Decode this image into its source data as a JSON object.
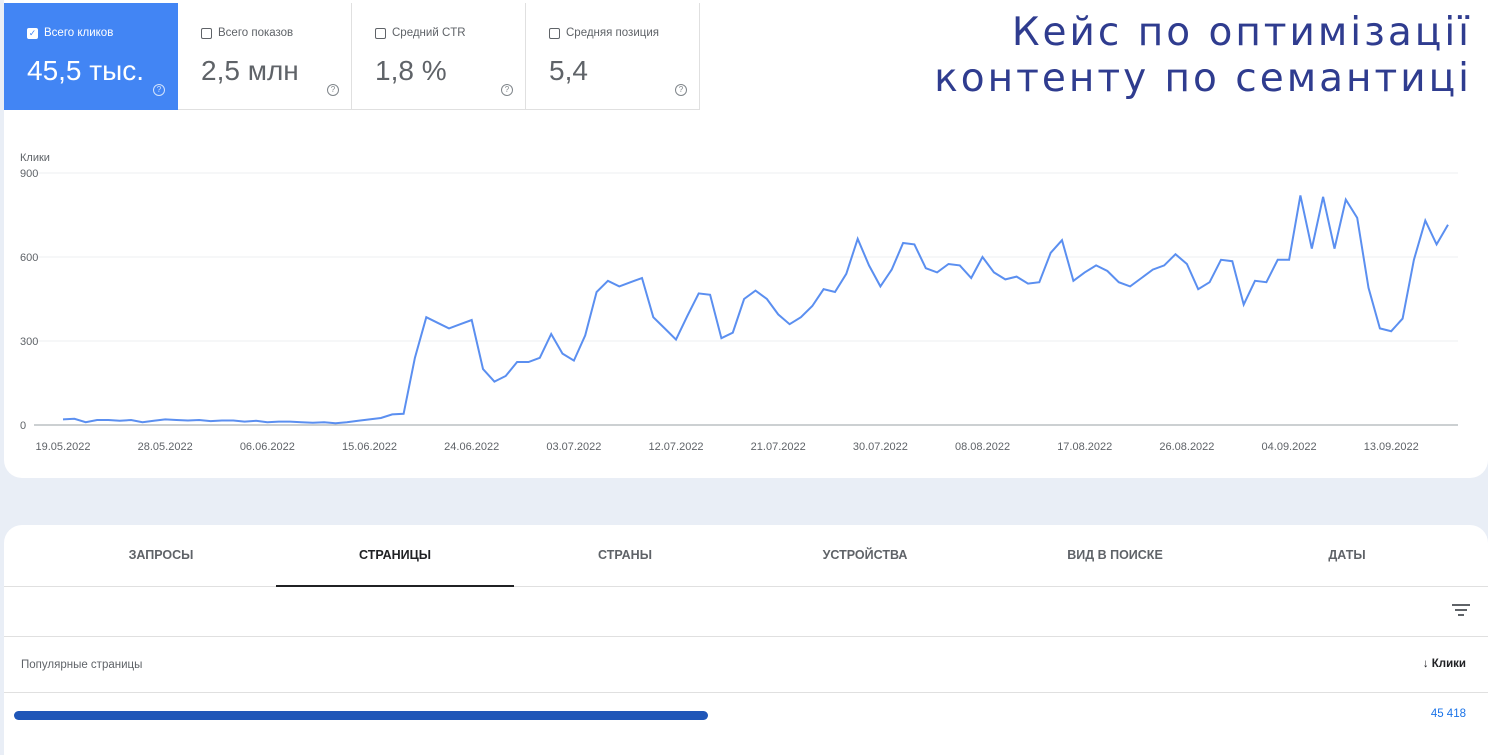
{
  "header": {
    "title_line1": "Кейс по оптимізації",
    "title_line2": "контенту по семантиці"
  },
  "metrics": [
    {
      "label": "Всего кликов",
      "value": "45,5 тыс.",
      "checked": true
    },
    {
      "label": "Всего показов",
      "value": "2,5 млн",
      "checked": false
    },
    {
      "label": "Средний CTR",
      "value": "1,8 %",
      "checked": false
    },
    {
      "label": "Средняя позиция",
      "value": "5,4",
      "checked": false
    }
  ],
  "help_glyph": "?",
  "check_glyph": "✓",
  "colors": {
    "accent": "#4285f4",
    "line": "#5b8ff0",
    "title": "#2f3c8f",
    "redaction": "#1f56b8"
  },
  "chart_data": {
    "type": "line",
    "ylabel": "Клики",
    "ylim": [
      0,
      900
    ],
    "yticks": [
      "0",
      "300",
      "600",
      "900"
    ],
    "xtick_labels": [
      "19.05.2022",
      "28.05.2022",
      "06.06.2022",
      "15.06.2022",
      "24.06.2022",
      "03.07.2022",
      "12.07.2022",
      "21.07.2022",
      "30.07.2022",
      "08.08.2022",
      "17.08.2022",
      "26.08.2022",
      "04.09.2022",
      "13.09.2022"
    ],
    "x_start": "19.05.2022",
    "x_end": "18.09.2022",
    "grid": true,
    "series": [
      {
        "values": [
          20,
          22,
          10,
          18,
          18,
          15,
          18,
          10,
          15,
          20,
          18,
          16,
          18,
          14,
          16,
          16,
          12,
          15,
          10,
          12,
          12,
          10,
          8,
          10,
          6,
          10,
          15,
          20,
          25,
          38,
          40,
          240,
          385,
          365,
          345,
          360,
          375,
          200,
          155,
          175,
          225,
          225,
          240,
          325,
          255,
          230,
          320,
          475,
          515,
          495,
          510,
          525,
          385,
          345,
          305,
          390,
          470,
          465,
          310,
          330,
          450,
          480,
          450,
          395,
          360,
          385,
          425,
          485,
          475,
          540,
          665,
          570,
          495,
          555,
          650,
          645,
          560,
          545,
          575,
          570,
          525,
          600,
          545,
          520,
          530,
          505,
          510,
          615,
          660,
          515,
          545,
          570,
          550,
          510,
          495,
          525,
          555,
          570,
          610,
          575,
          485,
          510,
          590,
          585,
          430,
          515,
          510,
          590,
          590,
          820,
          630,
          815,
          630,
          805,
          740,
          490,
          345,
          335,
          380,
          590,
          730,
          645,
          715
        ]
      }
    ]
  },
  "tabs": [
    {
      "label": "ЗАПРОСЫ",
      "active": false
    },
    {
      "label": "СТРАНИЦЫ",
      "active": true
    },
    {
      "label": "СТРАНЫ",
      "active": false
    },
    {
      "label": "УСТРОЙСТВА",
      "active": false
    },
    {
      "label": "ВИД В ПОИСКЕ",
      "active": false
    },
    {
      "label": "ДАТЫ",
      "active": false
    }
  ],
  "table": {
    "column_left": "Популярные страницы",
    "column_right": "↓ Клики",
    "rows": [
      {
        "page": "",
        "clicks": "45 418"
      }
    ]
  }
}
